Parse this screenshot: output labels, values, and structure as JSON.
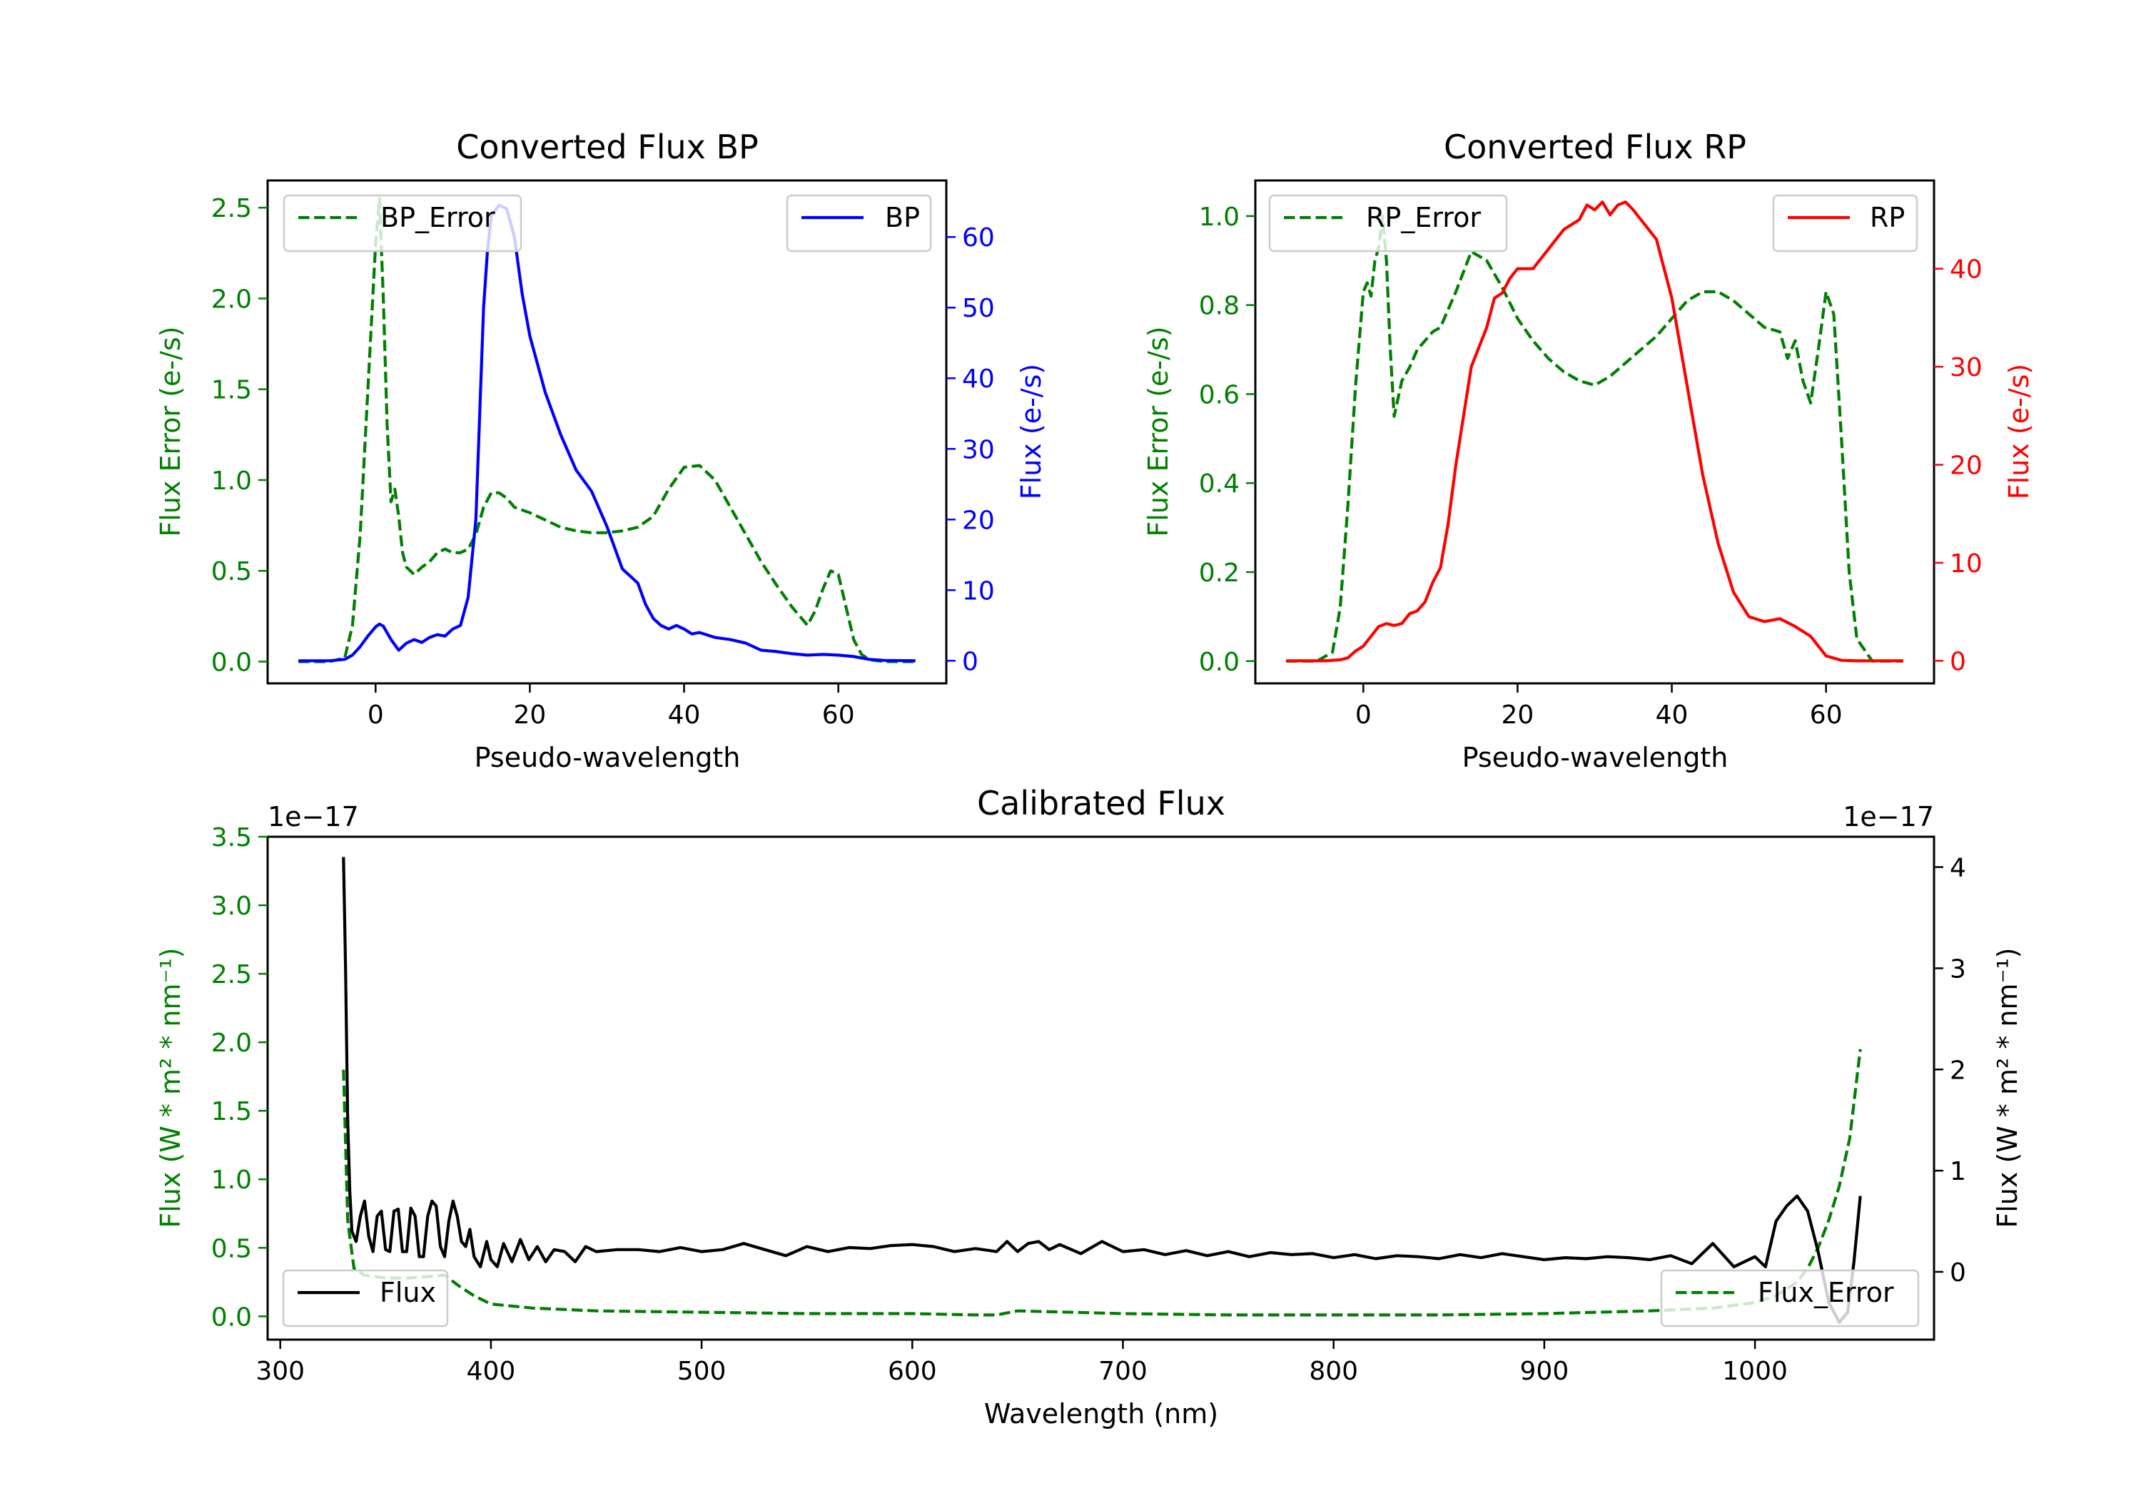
{
  "chart_data": [
    {
      "type": "line",
      "title": "Converted Flux BP",
      "xlabel": "Pseudo-wavelength",
      "xlim": [
        -14,
        74
      ],
      "x_ticks": [
        0,
        20,
        40,
        60
      ],
      "y_left": {
        "label": "Flux Error (e-/s)",
        "color": "#008000",
        "lim": [
          -0.12,
          2.65
        ],
        "ticks": [
          0.0,
          0.5,
          1.0,
          1.5,
          2.0,
          2.5
        ],
        "tick_labels": [
          "0.0",
          "0.5",
          "1.0",
          "1.5",
          "2.0",
          "2.5"
        ]
      },
      "y_right": {
        "label": "Flux (e-/s)",
        "color": "#0000ff",
        "lim": [
          -3.2,
          68
        ],
        "ticks": [
          0,
          10,
          20,
          30,
          40,
          50,
          60
        ],
        "tick_labels": [
          "0",
          "10",
          "20",
          "30",
          "40",
          "50",
          "60"
        ]
      },
      "series": [
        {
          "name": "BP_Error",
          "axis": "left",
          "style": "dashed",
          "color": "#008000",
          "x": [
            -10,
            -6,
            -4,
            -3,
            -2,
            -1,
            0,
            0.5,
            1,
            1.5,
            2,
            2.5,
            3,
            3.5,
            4,
            5,
            6,
            7,
            8,
            9,
            10,
            11,
            12,
            13,
            14,
            15,
            16,
            17,
            18,
            20,
            22,
            24,
            26,
            28,
            30,
            32,
            34,
            36,
            38,
            40,
            42,
            44,
            46,
            48,
            50,
            52,
            54,
            56,
            57,
            58,
            59,
            60,
            61,
            62,
            63,
            64,
            66,
            70
          ],
          "values": [
            0,
            0,
            0.02,
            0.2,
            0.7,
            1.5,
            2.3,
            2.55,
            2.0,
            1.3,
            0.88,
            0.95,
            0.8,
            0.6,
            0.52,
            0.48,
            0.52,
            0.55,
            0.6,
            0.62,
            0.6,
            0.6,
            0.62,
            0.7,
            0.85,
            0.93,
            0.93,
            0.9,
            0.85,
            0.82,
            0.78,
            0.74,
            0.72,
            0.71,
            0.71,
            0.72,
            0.74,
            0.8,
            0.95,
            1.07,
            1.08,
            1.0,
            0.85,
            0.7,
            0.55,
            0.42,
            0.3,
            0.2,
            0.28,
            0.4,
            0.5,
            0.48,
            0.3,
            0.12,
            0.04,
            0.01,
            0,
            0
          ]
        },
        {
          "name": "BP",
          "axis": "right",
          "style": "solid",
          "color": "#0000ff",
          "x": [
            -10,
            -6,
            -4,
            -3,
            -2,
            -1,
            0,
            0.5,
            1,
            2,
            3,
            4,
            5,
            6,
            7,
            8,
            9,
            10,
            11,
            12,
            13,
            13.5,
            14,
            14.5,
            15,
            16,
            17,
            18,
            19,
            20,
            21,
            22,
            24,
            26,
            28,
            30,
            32,
            33,
            34,
            35,
            36,
            37,
            38,
            39,
            40,
            41,
            42,
            44,
            46,
            48,
            50,
            52,
            54,
            56,
            58,
            60,
            62,
            64,
            66,
            70
          ],
          "values": [
            0,
            0,
            0.2,
            0.8,
            2.0,
            3.5,
            4.8,
            5.2,
            4.9,
            3.0,
            1.5,
            2.5,
            3.0,
            2.6,
            3.3,
            3.7,
            3.5,
            4.5,
            5.0,
            9.0,
            20,
            35,
            50,
            58,
            63,
            64.5,
            64,
            60,
            52,
            46,
            42,
            38,
            32,
            27,
            24,
            19,
            13,
            12,
            11,
            8,
            6,
            5,
            4.5,
            5,
            4.5,
            3.8,
            4,
            3.3,
            3.0,
            2.5,
            1.5,
            1.3,
            1.0,
            0.8,
            0.9,
            0.8,
            0.6,
            0.2,
            0.05,
            0
          ]
        }
      ],
      "legend": [
        {
          "label": "BP_Error",
          "position": "upper-left"
        },
        {
          "label": "BP",
          "position": "upper-right"
        }
      ]
    },
    {
      "type": "line",
      "title": "Converted Flux RP",
      "xlabel": "Pseudo-wavelength",
      "xlim": [
        -14,
        74
      ],
      "x_ticks": [
        0,
        20,
        40,
        60
      ],
      "y_left": {
        "label": "Flux Error (e-/s)",
        "color": "#008000",
        "lim": [
          -0.05,
          1.08
        ],
        "ticks": [
          0.0,
          0.2,
          0.4,
          0.6,
          0.8,
          1.0
        ],
        "tick_labels": [
          "0.0",
          "0.2",
          "0.4",
          "0.6",
          "0.8",
          "1.0"
        ]
      },
      "y_right": {
        "label": "Flux (e-/s)",
        "color": "#ff0000",
        "lim": [
          -2.3,
          49
        ],
        "ticks": [
          0,
          10,
          20,
          30,
          40
        ],
        "tick_labels": [
          "0",
          "10",
          "20",
          "30",
          "40"
        ]
      },
      "series": [
        {
          "name": "RP_Error",
          "axis": "left",
          "style": "dashed",
          "color": "#008000",
          "x": [
            -10,
            -6,
            -4,
            -3,
            -2,
            -1,
            0,
            0.5,
            1,
            1.5,
            2,
            2.5,
            3,
            3.5,
            4,
            5,
            6,
            7,
            8,
            9,
            10,
            12,
            14,
            16,
            18,
            20,
            22,
            24,
            26,
            28,
            30,
            32,
            34,
            36,
            38,
            40,
            42,
            44,
            46,
            48,
            50,
            52,
            54,
            55,
            56,
            57,
            58,
            59,
            60,
            61,
            62,
            63,
            64,
            66,
            70
          ],
          "values": [
            0,
            0,
            0.02,
            0.12,
            0.35,
            0.62,
            0.83,
            0.85,
            0.82,
            0.9,
            0.93,
            1.0,
            0.9,
            0.7,
            0.55,
            0.63,
            0.66,
            0.7,
            0.72,
            0.74,
            0.75,
            0.83,
            0.92,
            0.9,
            0.84,
            0.77,
            0.72,
            0.68,
            0.65,
            0.63,
            0.62,
            0.64,
            0.67,
            0.7,
            0.73,
            0.77,
            0.81,
            0.83,
            0.83,
            0.81,
            0.78,
            0.75,
            0.74,
            0.68,
            0.72,
            0.63,
            0.58,
            0.7,
            0.83,
            0.78,
            0.5,
            0.2,
            0.05,
            0,
            0
          ]
        },
        {
          "name": "RP",
          "axis": "right",
          "style": "solid",
          "color": "#ff0000",
          "x": [
            -10,
            -5,
            -3,
            -2,
            -1,
            0,
            1,
            2,
            3,
            4,
            5,
            6,
            7,
            8,
            9,
            10,
            11,
            12,
            13,
            14,
            15,
            16,
            17,
            18,
            19,
            20,
            22,
            24,
            26,
            28,
            29,
            30,
            31,
            32,
            33,
            34,
            35,
            36,
            37,
            38,
            40,
            42,
            44,
            46,
            48,
            50,
            52,
            54,
            56,
            58,
            60,
            62,
            64,
            66,
            70
          ],
          "values": [
            0,
            0,
            0.1,
            0.3,
            1.0,
            1.5,
            2.5,
            3.5,
            3.8,
            3.6,
            3.8,
            4.8,
            5.1,
            6.0,
            8.0,
            9.5,
            14,
            20,
            25,
            30,
            32,
            34,
            37,
            37.5,
            39,
            40,
            40,
            42,
            44,
            45,
            46.5,
            46,
            46.8,
            45.5,
            46.5,
            46.8,
            46,
            45,
            44,
            43,
            37,
            28,
            19,
            12,
            7,
            4.5,
            4,
            4.3,
            3.5,
            2.5,
            0.5,
            0.05,
            0,
            0,
            0
          ]
        }
      ],
      "legend": [
        {
          "label": "RP_Error",
          "position": "upper-left"
        },
        {
          "label": "RP",
          "position": "upper-right"
        }
      ]
    },
    {
      "type": "line",
      "title": "Calibrated Flux",
      "xlabel": "Wavelength (nm)",
      "xlim": [
        294,
        1085
      ],
      "x_ticks": [
        300,
        400,
        500,
        600,
        700,
        800,
        900,
        1000
      ],
      "y_left": {
        "label": "Flux (W * m² * nm⁻¹)",
        "color": "#008000",
        "lim": [
          -0.17,
          3.5
        ],
        "ticks": [
          0.0,
          0.5,
          1.0,
          1.5,
          2.0,
          2.5,
          3.0,
          3.5
        ],
        "tick_labels": [
          "0.0",
          "0.5",
          "1.0",
          "1.5",
          "2.0",
          "2.5",
          "3.0",
          "3.5"
        ],
        "offset_text": "1e−17"
      },
      "y_right": {
        "label": "Flux (W * m² * nm⁻¹)",
        "color": "#000000",
        "lim": [
          -0.67,
          4.3
        ],
        "ticks": [
          0,
          1,
          2,
          3,
          4
        ],
        "tick_labels": [
          "0",
          "1",
          "2",
          "3",
          "4"
        ],
        "offset_text": "1e−17"
      },
      "series": [
        {
          "name": "Flux_Error",
          "axis": "left",
          "style": "dashed",
          "color": "#008000",
          "x": [
            330,
            332,
            335,
            340,
            350,
            360,
            370,
            378,
            385,
            392,
            400,
            420,
            450,
            500,
            550,
            600,
            630,
            640,
            650,
            700,
            750,
            800,
            850,
            900,
            950,
            980,
            1000,
            1010,
            1020,
            1025,
            1030,
            1035,
            1040,
            1045,
            1050
          ],
          "values": [
            1.8,
            0.7,
            0.35,
            0.3,
            0.28,
            0.28,
            0.29,
            0.3,
            0.22,
            0.15,
            0.09,
            0.06,
            0.04,
            0.03,
            0.02,
            0.02,
            0.01,
            0.01,
            0.04,
            0.02,
            0.01,
            0.01,
            0.01,
            0.02,
            0.04,
            0.06,
            0.1,
            0.15,
            0.25,
            0.35,
            0.5,
            0.7,
            0.95,
            1.3,
            1.95
          ]
        },
        {
          "name": "Flux",
          "axis": "right",
          "style": "solid",
          "color": "#000000",
          "x": [
            330,
            331,
            332,
            333,
            334,
            336,
            338,
            340,
            342,
            344,
            346,
            348,
            350,
            352,
            354,
            356,
            358,
            360,
            362,
            364,
            366,
            368,
            370,
            372,
            374,
            376,
            378,
            380,
            382,
            384,
            386,
            388,
            390,
            392,
            395,
            398,
            400,
            403,
            406,
            410,
            414,
            418,
            422,
            426,
            430,
            435,
            440,
            445,
            450,
            460,
            470,
            480,
            490,
            500,
            510,
            520,
            530,
            540,
            550,
            560,
            570,
            580,
            590,
            600,
            610,
            620,
            630,
            640,
            645,
            650,
            655,
            660,
            665,
            670,
            680,
            690,
            700,
            710,
            720,
            730,
            740,
            750,
            760,
            770,
            780,
            790,
            800,
            810,
            820,
            830,
            840,
            850,
            860,
            870,
            880,
            890,
            900,
            910,
            920,
            930,
            940,
            950,
            960,
            970,
            980,
            990,
            1000,
            1005,
            1010,
            1015,
            1020,
            1025,
            1030,
            1035,
            1040,
            1044,
            1047,
            1050
          ],
          "values": [
            4.1,
            3.0,
            1.5,
            0.8,
            0.4,
            0.3,
            0.55,
            0.7,
            0.35,
            0.2,
            0.55,
            0.6,
            0.22,
            0.2,
            0.6,
            0.62,
            0.2,
            0.2,
            0.63,
            0.55,
            0.15,
            0.15,
            0.55,
            0.7,
            0.65,
            0.25,
            0.15,
            0.5,
            0.7,
            0.55,
            0.3,
            0.25,
            0.42,
            0.15,
            0.05,
            0.3,
            0.12,
            0.05,
            0.28,
            0.1,
            0.32,
            0.12,
            0.25,
            0.1,
            0.22,
            0.2,
            0.1,
            0.25,
            0.2,
            0.22,
            0.22,
            0.2,
            0.24,
            0.2,
            0.22,
            0.28,
            0.22,
            0.16,
            0.25,
            0.2,
            0.24,
            0.23,
            0.26,
            0.27,
            0.25,
            0.2,
            0.23,
            0.2,
            0.3,
            0.2,
            0.28,
            0.3,
            0.22,
            0.27,
            0.18,
            0.3,
            0.2,
            0.22,
            0.17,
            0.21,
            0.16,
            0.2,
            0.15,
            0.19,
            0.17,
            0.18,
            0.14,
            0.17,
            0.13,
            0.16,
            0.15,
            0.13,
            0.17,
            0.14,
            0.18,
            0.15,
            0.12,
            0.14,
            0.13,
            0.15,
            0.14,
            0.12,
            0.16,
            0.08,
            0.28,
            0.05,
            0.15,
            0.05,
            0.5,
            0.65,
            0.75,
            0.6,
            0.2,
            -0.3,
            -0.5,
            -0.4,
            0.1,
            0.75
          ]
        }
      ],
      "legend": [
        {
          "label": "Flux",
          "position": "lower-left"
        },
        {
          "label": "Flux_Error",
          "position": "lower-right"
        }
      ]
    }
  ]
}
